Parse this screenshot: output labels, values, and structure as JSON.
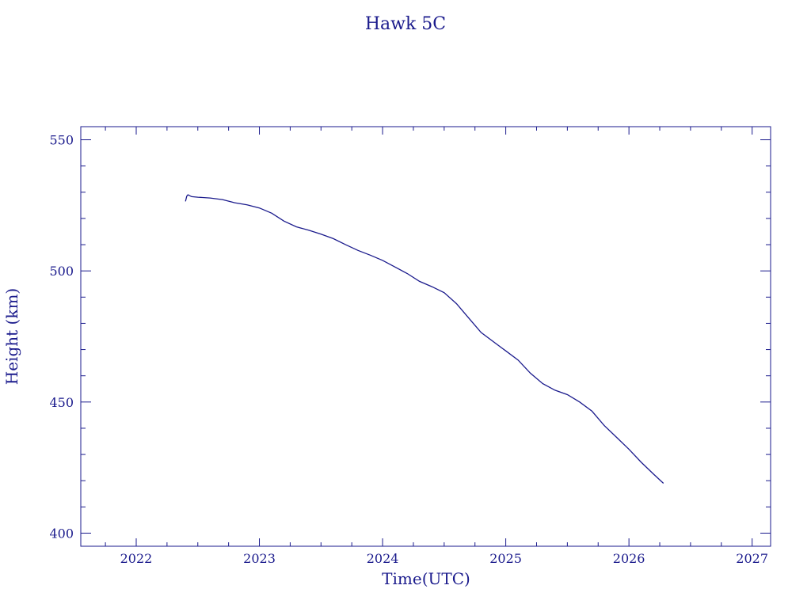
{
  "chart_data": {
    "type": "line",
    "title": "Hawk 5C",
    "xlabel": "Time(UTC)",
    "ylabel": "Height (km)",
    "xlim": [
      2021.55,
      2027.15
    ],
    "ylim": [
      395,
      555
    ],
    "xticks": [
      "2022",
      "2023",
      "2024",
      "2025",
      "2026",
      "2027"
    ],
    "yticks": [
      "400",
      "450",
      "500",
      "550"
    ],
    "grid": false,
    "color": "#1a1a8c",
    "series": [
      {
        "x": [
          2022.4,
          2022.41,
          2022.42,
          2022.45,
          2022.5,
          2022.6,
          2022.7,
          2022.8,
          2022.9,
          2023.0,
          2023.1,
          2023.2,
          2023.3,
          2023.4,
          2023.5,
          2023.6,
          2023.7,
          2023.8,
          2023.9,
          2024.0,
          2024.1,
          2024.2,
          2024.3,
          2024.4,
          2024.5,
          2024.6,
          2024.7,
          2024.8,
          2024.9,
          2025.0,
          2025.1,
          2025.2,
          2025.3,
          2025.4,
          2025.5,
          2025.6,
          2025.7,
          2025.8,
          2025.9,
          2026.0,
          2026.1,
          2026.2,
          2026.28
        ],
        "y": [
          526.5,
          528.5,
          529.0,
          528.3,
          528.1,
          527.8,
          527.2,
          526.0,
          525.2,
          524.0,
          522.0,
          519.0,
          516.8,
          515.5,
          514.0,
          512.3,
          510.0,
          507.8,
          506.0,
          504.0,
          501.5,
          499.0,
          496.0,
          494.0,
          491.7,
          487.5,
          482.0,
          476.5,
          473.0,
          469.5,
          466.0,
          461.0,
          457.0,
          454.5,
          452.8,
          450.0,
          446.5,
          441.0,
          436.5,
          432.0,
          427.0,
          422.5,
          419.0
        ]
      }
    ]
  }
}
